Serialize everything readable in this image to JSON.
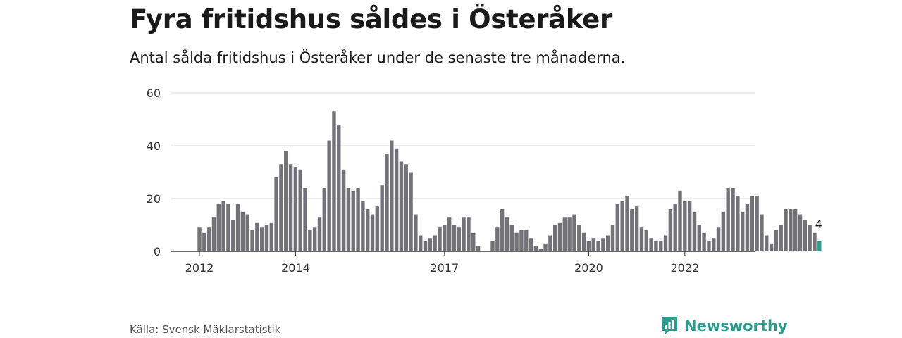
{
  "header": {
    "title": "Fyra fritidshus såldes i Österåker",
    "subtitle": "Antal sålda fritidshus i Österåker under de senaste tre månaderna."
  },
  "footer": {
    "source": "Källa: Svensk Mäklarstatistik",
    "brand": "Newsworthy",
    "brand_icon": "newsworthy-logo-icon"
  },
  "colors": {
    "bar": "#737278",
    "highlight": "#2a9d8f",
    "grid": "#d9d9d9",
    "axis": "#333333"
  },
  "chart_data": {
    "type": "bar",
    "title": "Fyra fritidshus såldes i Österåker",
    "subtitle": "Antal sålda fritidshus i Österåker under de senaste tre månaderna.",
    "xlabel": "",
    "ylabel": "",
    "ylim": [
      0,
      60
    ],
    "yticks": [
      "0",
      "20",
      "40",
      "60"
    ],
    "grid": true,
    "xticks": [
      {
        "label": "2012",
        "index": 0
      },
      {
        "label": "2014",
        "index": 20
      },
      {
        "label": "2017",
        "index": 51
      },
      {
        "label": "2020",
        "index": 81
      },
      {
        "label": "2022",
        "index": 101
      }
    ],
    "values": [
      9,
      7,
      9,
      13,
      18,
      19,
      18,
      12,
      18,
      15,
      14,
      8,
      11,
      9,
      10,
      11,
      28,
      33,
      38,
      33,
      32,
      31,
      24,
      8,
      9,
      13,
      24,
      42,
      53,
      48,
      31,
      24,
      23,
      24,
      19,
      16,
      14,
      17,
      25,
      37,
      42,
      39,
      34,
      33,
      30,
      14,
      6,
      4,
      5,
      6,
      9,
      10,
      13,
      10,
      9,
      13,
      13,
      7,
      2,
      0,
      0,
      4,
      9,
      16,
      13,
      10,
      7,
      8,
      8,
      5,
      2,
      1,
      3,
      6,
      10,
      11,
      13,
      13,
      14,
      10,
      7,
      4,
      5,
      4,
      5,
      6,
      10,
      18,
      19,
      21,
      16,
      17,
      9,
      8,
      5,
      4,
      4,
      6,
      16,
      18,
      23,
      19,
      19,
      15,
      10,
      7,
      4,
      5,
      9,
      15,
      24,
      24,
      21,
      15,
      18,
      21,
      21,
      14,
      6,
      3,
      8,
      10,
      16,
      16,
      16,
      14,
      12,
      10,
      7,
      4
    ],
    "highlight_index": 129,
    "data_label": "4"
  }
}
